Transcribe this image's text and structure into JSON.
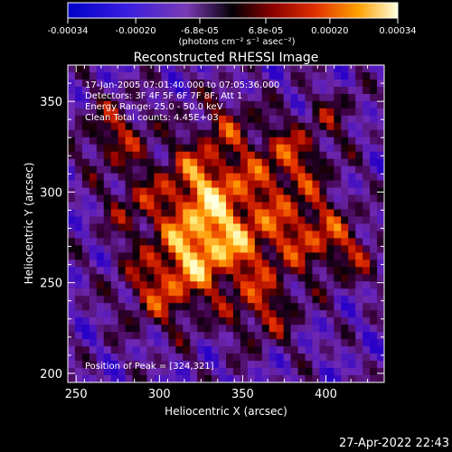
{
  "chart_data": {
    "type": "heatmap",
    "title": "Reconstructed RHESSI Image",
    "xlabel": "Heliocentric X (arcsec)",
    "ylabel": "Heliocentric Y (arcsec)",
    "xlim": [
      245,
      435
    ],
    "ylim": [
      195,
      370
    ],
    "x_ticks": [
      250,
      300,
      350,
      400
    ],
    "y_ticks": [
      200,
      250,
      300,
      350
    ],
    "colorbar": {
      "range": [
        -0.00034,
        0.00034
      ],
      "tick_labels": [
        "-0.00034",
        "-0.00020",
        "-6.8e-05",
        "6.8e-05",
        "0.00020",
        "0.00034"
      ],
      "tick_values": [
        -0.00034,
        -0.0002,
        -6.8e-05,
        6.8e-05,
        0.0002,
        0.00034
      ],
      "units": "(photons cm⁻² s⁻¹ asec⁻²)"
    },
    "annotations": [
      "17-Jan-2005 07:01:40.000 to 07:05:36.000",
      "Detectors: 3F 4F 5F 6F 7F 8F, Att 1",
      "Energy Range: 25.0 - 50.0 keV",
      "Clean     Total counts: 4.45E+03"
    ],
    "peak_label": "Position of Peak = [324,321]",
    "peak": [
      324,
      321
    ],
    "colors": {
      "low": "#2a00d0",
      "mid_low": "#7a38b8",
      "black": "#000000",
      "mid_high": "#d82010",
      "high": "#ffa000",
      "top": "#ffffd8"
    }
  },
  "footer_date": "27-Apr-2022 22:43"
}
